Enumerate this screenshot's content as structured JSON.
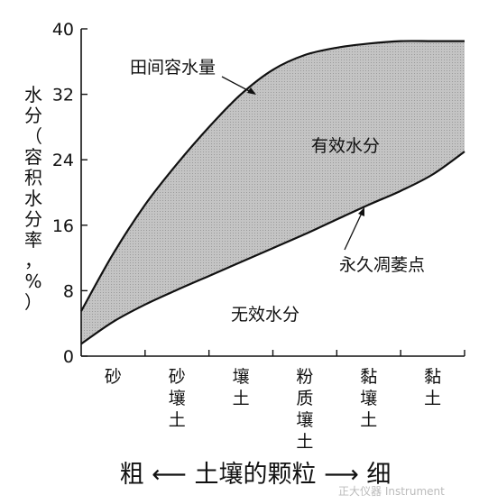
{
  "chart_data": {
    "type": "area",
    "ylabel": "水分（容积水分率，%）",
    "xlabel": "粗 ⟵ 土壤的颗粒 ⟶ 细",
    "ylim": [
      0,
      40
    ],
    "yticks": [
      0,
      8,
      16,
      24,
      32,
      40
    ],
    "categories": [
      "砂",
      "砂壤土",
      "壤土",
      "粉质壤土",
      "黏壤土",
      "黏土"
    ],
    "x": [
      0,
      0.5,
      1.0,
      1.5,
      2.0,
      2.5,
      3.0,
      3.5,
      4.0,
      4.5,
      5.0,
      5.5,
      6.0
    ],
    "series": [
      {
        "name": "田间容水量",
        "values": [
          5.5,
          12.5,
          18.5,
          23.5,
          28.0,
          32.0,
          35.0,
          36.8,
          37.7,
          38.2,
          38.5,
          38.5,
          38.5
        ]
      },
      {
        "name": "永久凋萎点",
        "values": [
          1.5,
          4.2,
          6.3,
          8.1,
          9.8,
          11.5,
          13.2,
          14.9,
          16.7,
          18.5,
          20.2,
          22.2,
          25.0
        ]
      }
    ],
    "annotations": [
      {
        "text": "田间容水量"
      },
      {
        "text": "有效水分"
      },
      {
        "text": "永久凋萎点"
      },
      {
        "text": "无效水分"
      }
    ],
    "fill_color": "#bdbdbd",
    "line_color": "#111111"
  },
  "watermark": "正大仪器 Instrument"
}
